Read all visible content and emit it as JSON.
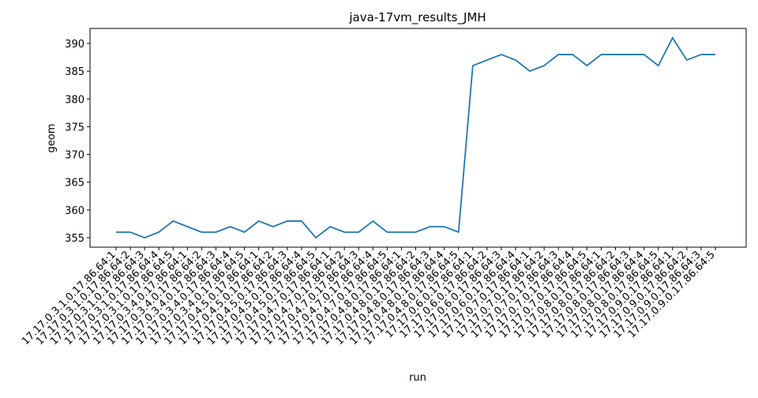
{
  "chart_data": {
    "type": "line",
    "title": "java-17vm_results_JMH",
    "x_label": "run",
    "y_label": "geom",
    "categories": [
      "17.17.0.3.1.0.17.86.64:1",
      "17.17.0.3.1.0.17.86.64:2",
      "17.17.0.3.1.0.17.86.64:3",
      "17.17.0.3.1.0.17.86.64:4",
      "17.17.0.3.1.0.17.86.64:5",
      "17.17.0.3.4.0.17.86.64:1",
      "17.17.0.3.4.0.17.86.64:2",
      "17.17.0.3.4.0.17.86.64:3",
      "17.17.0.3.4.0.17.86.64:4",
      "17.17.0.3.4.0.17.86.64:5",
      "17.17.0.4.5.0.17.86.64:1",
      "17.17.0.4.5.0.17.86.64:2",
      "17.17.0.4.5.0.17.86.64:3",
      "17.17.0.4.5.0.17.86.64:4",
      "17.17.0.4.5.0.17.86.64:5",
      "17.17.0.4.7.0.17.86.64:1",
      "17.17.0.4.7.0.17.86.64:2",
      "17.17.0.4.7.0.17.86.64:3",
      "17.17.0.4.7.0.17.86.64:4",
      "17.17.0.4.7.0.17.86.64:5",
      "17.17.0.4.8.0.17.86.64:1",
      "17.17.0.4.8.0.17.86.64:2",
      "17.17.0.4.8.0.17.86.64:3",
      "17.17.0.4.8.0.17.86.64:4",
      "17.17.0.4.8.0.17.86.64:5",
      "17.17.0.6.0.17.86.64:1",
      "17.17.0.6.0.17.86.64:2",
      "17.17.0.6.0.17.86.64:3",
      "17.17.0.6.0.17.86.64:4",
      "17.17.0.7.0.17.86.64:1",
      "17.17.0.7.0.17.86.64:2",
      "17.17.0.7.0.17.86.64:3",
      "17.17.0.7.0.17.86.64:4",
      "17.17.0.7.0.17.86.64:5",
      "17.17.0.8.0.17.86.64:1",
      "17.17.0.8.0.17.86.64:2",
      "17.17.0.8.0.17.86.64:3",
      "17.17.0.8.0.17.86.64:4",
      "17.17.0.8.0.17.86.64:5",
      "17.17.0.9.0.17.86.64:1",
      "17.17.0.9.0.17.86.64:2",
      "17.17.0.9.0.17.86.64:3",
      "17.17.0.9.0.17.86.64:5"
    ],
    "values": [
      356,
      356,
      355,
      356,
      358,
      357,
      356,
      356,
      357,
      356,
      358,
      357,
      358,
      358,
      355,
      357,
      356,
      356,
      358,
      356,
      356,
      356,
      357,
      357,
      356,
      386,
      387,
      388,
      387,
      385,
      386,
      388,
      388,
      386,
      388,
      388,
      388,
      388,
      386,
      391,
      387,
      388,
      388
    ],
    "color": "#1f77b4",
    "ylim": [
      353.3,
      392.7
    ],
    "yticks": [
      355,
      360,
      365,
      370,
      375,
      380,
      385,
      390
    ]
  }
}
